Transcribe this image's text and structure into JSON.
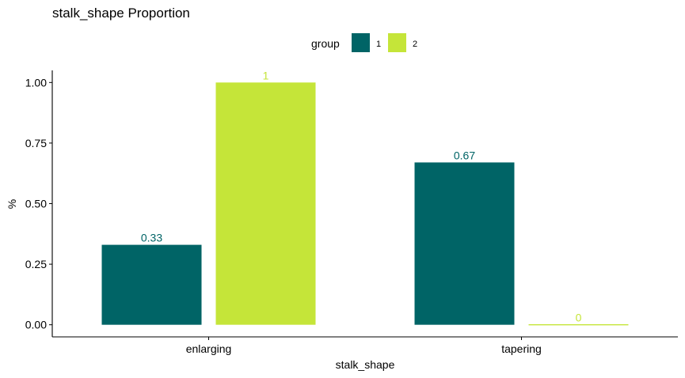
{
  "chart_data": {
    "type": "bar",
    "title": "stalk_shape Proportion",
    "xlabel": "stalk_shape",
    "ylabel": "%",
    "categories": [
      "enlarging",
      "tapering"
    ],
    "series": [
      {
        "name": "1",
        "values": [
          0.33,
          0.67
        ],
        "labels": [
          "0.33",
          "0.67"
        ],
        "color": "#006466"
      },
      {
        "name": "2",
        "values": [
          1,
          0
        ],
        "labels": [
          "1",
          "0"
        ],
        "color": "#c5e539"
      }
    ],
    "ylim": [
      -0.05,
      1.05
    ],
    "yticks": [
      0,
      0.25,
      0.5,
      0.75,
      1
    ],
    "ytick_labels": [
      "0.00",
      "0.25",
      "0.50",
      "0.75",
      "1.00"
    ],
    "legend": {
      "title": "group",
      "position": "top"
    },
    "grid": false
  }
}
